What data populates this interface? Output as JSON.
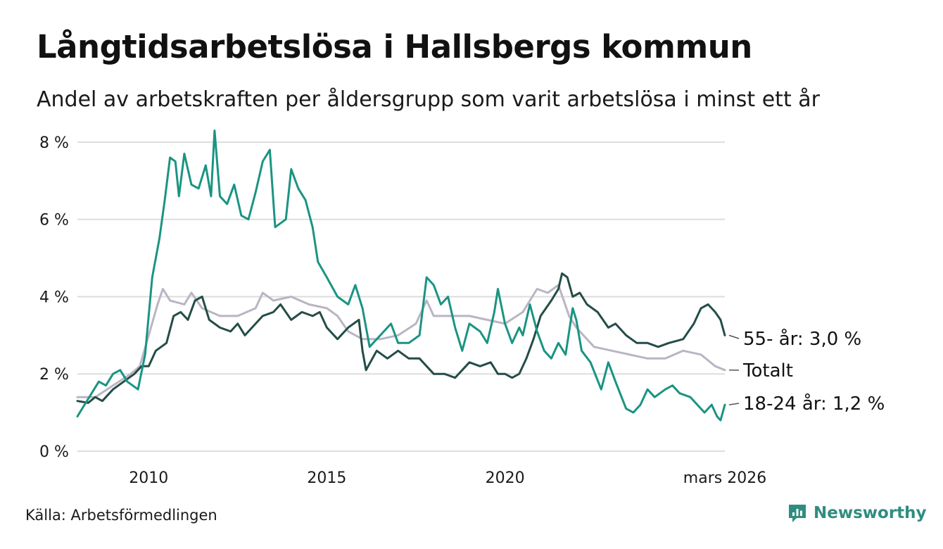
{
  "header": {
    "title": "Långtidsarbetslösa i Hallsbergs kommun",
    "subtitle": "Andel av arbetskraften per åldersgrupp som varit arbetslösa i minst ett år"
  },
  "footer": {
    "source": "Källa: Arbetsförmedlingen",
    "brand": "Newsworthy"
  },
  "colors": {
    "age_18_24": "#1a9482",
    "age_55": "#244d47",
    "total": "#b9b5c4",
    "grid": "#dddddd",
    "brand": "#2f8d80"
  },
  "chart_data": {
    "type": "line",
    "title": "Långtidsarbetslösa i Hallsbergs kommun",
    "xlabel": "",
    "ylabel": "",
    "x_ticks": [
      {
        "x": 2010,
        "label": "2010"
      },
      {
        "x": 2015,
        "label": "2015"
      },
      {
        "x": 2020,
        "label": "2020"
      },
      {
        "x": 2026.17,
        "label": "mars 2026"
      }
    ],
    "y_ticks": [
      {
        "y": 0,
        "label": "0 %"
      },
      {
        "y": 2,
        "label": "2 %"
      },
      {
        "y": 4,
        "label": "4 %"
      },
      {
        "y": 6,
        "label": "6 %"
      },
      {
        "y": 8,
        "label": "8 %"
      }
    ],
    "xlim": [
      2008.0,
      2026.17
    ],
    "ylim": [
      0,
      8.4
    ],
    "series": [
      {
        "name": "Totalt",
        "end_label": "Totalt",
        "color_key": "total",
        "points": [
          [
            2008.0,
            1.4
          ],
          [
            2008.5,
            1.4
          ],
          [
            2009.0,
            1.7
          ],
          [
            2009.5,
            2.0
          ],
          [
            2009.75,
            2.2
          ],
          [
            2010.0,
            3.0
          ],
          [
            2010.25,
            3.8
          ],
          [
            2010.4,
            4.2
          ],
          [
            2010.6,
            3.9
          ],
          [
            2011.0,
            3.8
          ],
          [
            2011.2,
            4.1
          ],
          [
            2011.5,
            3.7
          ],
          [
            2012.0,
            3.5
          ],
          [
            2012.5,
            3.5
          ],
          [
            2013.0,
            3.7
          ],
          [
            2013.2,
            4.1
          ],
          [
            2013.5,
            3.9
          ],
          [
            2014.0,
            4.0
          ],
          [
            2014.5,
            3.8
          ],
          [
            2015.0,
            3.7
          ],
          [
            2015.3,
            3.5
          ],
          [
            2015.6,
            3.1
          ],
          [
            2016.0,
            2.9
          ],
          [
            2016.5,
            2.9
          ],
          [
            2017.0,
            3.0
          ],
          [
            2017.5,
            3.3
          ],
          [
            2017.8,
            3.9
          ],
          [
            2018.0,
            3.5
          ],
          [
            2018.5,
            3.5
          ],
          [
            2019.0,
            3.5
          ],
          [
            2019.5,
            3.4
          ],
          [
            2020.0,
            3.3
          ],
          [
            2020.5,
            3.6
          ],
          [
            2020.9,
            4.2
          ],
          [
            2021.2,
            4.1
          ],
          [
            2021.5,
            4.3
          ],
          [
            2021.8,
            3.5
          ],
          [
            2022.0,
            3.2
          ],
          [
            2022.5,
            2.7
          ],
          [
            2023.0,
            2.6
          ],
          [
            2023.5,
            2.5
          ],
          [
            2024.0,
            2.4
          ],
          [
            2024.5,
            2.4
          ],
          [
            2025.0,
            2.6
          ],
          [
            2025.5,
            2.5
          ],
          [
            2025.9,
            2.2
          ],
          [
            2026.17,
            2.1
          ]
        ]
      },
      {
        "name": "55- år",
        "end_label": "55- år: 3,0 %",
        "color_key": "age_55",
        "points": [
          [
            2008.0,
            1.3
          ],
          [
            2008.3,
            1.25
          ],
          [
            2008.5,
            1.4
          ],
          [
            2008.7,
            1.3
          ],
          [
            2009.0,
            1.6
          ],
          [
            2009.3,
            1.8
          ],
          [
            2009.6,
            2.0
          ],
          [
            2009.8,
            2.2
          ],
          [
            2010.0,
            2.2
          ],
          [
            2010.2,
            2.6
          ],
          [
            2010.5,
            2.8
          ],
          [
            2010.7,
            3.5
          ],
          [
            2010.9,
            3.6
          ],
          [
            2011.1,
            3.4
          ],
          [
            2011.3,
            3.9
          ],
          [
            2011.5,
            4.0
          ],
          [
            2011.7,
            3.4
          ],
          [
            2012.0,
            3.2
          ],
          [
            2012.3,
            3.1
          ],
          [
            2012.5,
            3.3
          ],
          [
            2012.7,
            3.0
          ],
          [
            2013.0,
            3.3
          ],
          [
            2013.2,
            3.5
          ],
          [
            2013.5,
            3.6
          ],
          [
            2013.7,
            3.8
          ],
          [
            2014.0,
            3.4
          ],
          [
            2014.3,
            3.6
          ],
          [
            2014.6,
            3.5
          ],
          [
            2014.8,
            3.6
          ],
          [
            2015.0,
            3.2
          ],
          [
            2015.3,
            2.9
          ],
          [
            2015.6,
            3.2
          ],
          [
            2015.9,
            3.4
          ],
          [
            2016.0,
            2.6
          ],
          [
            2016.1,
            2.1
          ],
          [
            2016.4,
            2.6
          ],
          [
            2016.7,
            2.4
          ],
          [
            2017.0,
            2.6
          ],
          [
            2017.3,
            2.4
          ],
          [
            2017.6,
            2.4
          ],
          [
            2018.0,
            2.0
          ],
          [
            2018.3,
            2.0
          ],
          [
            2018.6,
            1.9
          ],
          [
            2018.8,
            2.1
          ],
          [
            2019.0,
            2.3
          ],
          [
            2019.3,
            2.2
          ],
          [
            2019.6,
            2.3
          ],
          [
            2019.8,
            2.0
          ],
          [
            2020.0,
            2.0
          ],
          [
            2020.2,
            1.9
          ],
          [
            2020.4,
            2.0
          ],
          [
            2020.6,
            2.4
          ],
          [
            2020.8,
            2.9
          ],
          [
            2021.0,
            3.5
          ],
          [
            2021.3,
            3.9
          ],
          [
            2021.5,
            4.2
          ],
          [
            2021.6,
            4.6
          ],
          [
            2021.75,
            4.5
          ],
          [
            2021.9,
            4.0
          ],
          [
            2022.1,
            4.1
          ],
          [
            2022.3,
            3.8
          ],
          [
            2022.6,
            3.6
          ],
          [
            2022.9,
            3.2
          ],
          [
            2023.1,
            3.3
          ],
          [
            2023.4,
            3.0
          ],
          [
            2023.7,
            2.8
          ],
          [
            2024.0,
            2.8
          ],
          [
            2024.3,
            2.7
          ],
          [
            2024.6,
            2.8
          ],
          [
            2025.0,
            2.9
          ],
          [
            2025.3,
            3.3
          ],
          [
            2025.5,
            3.7
          ],
          [
            2025.7,
            3.8
          ],
          [
            2025.9,
            3.6
          ],
          [
            2026.05,
            3.4
          ],
          [
            2026.17,
            3.0
          ]
        ]
      },
      {
        "name": "18-24 år",
        "end_label": "18-24 år: 1,2 %",
        "color_key": "age_18_24",
        "points": [
          [
            2008.0,
            0.9
          ],
          [
            2008.2,
            1.2
          ],
          [
            2008.4,
            1.5
          ],
          [
            2008.6,
            1.8
          ],
          [
            2008.8,
            1.7
          ],
          [
            2009.0,
            2.0
          ],
          [
            2009.2,
            2.1
          ],
          [
            2009.4,
            1.8
          ],
          [
            2009.7,
            1.6
          ],
          [
            2009.9,
            2.5
          ],
          [
            2010.1,
            4.5
          ],
          [
            2010.3,
            5.5
          ],
          [
            2010.45,
            6.5
          ],
          [
            2010.6,
            7.6
          ],
          [
            2010.75,
            7.5
          ],
          [
            2010.85,
            6.6
          ],
          [
            2011.0,
            7.7
          ],
          [
            2011.2,
            6.9
          ],
          [
            2011.4,
            6.8
          ],
          [
            2011.6,
            7.4
          ],
          [
            2011.75,
            6.6
          ],
          [
            2011.85,
            8.3
          ],
          [
            2012.0,
            6.6
          ],
          [
            2012.2,
            6.4
          ],
          [
            2012.4,
            6.9
          ],
          [
            2012.6,
            6.1
          ],
          [
            2012.8,
            6.0
          ],
          [
            2013.0,
            6.7
          ],
          [
            2013.2,
            7.5
          ],
          [
            2013.4,
            7.8
          ],
          [
            2013.55,
            5.8
          ],
          [
            2013.7,
            5.9
          ],
          [
            2013.85,
            6.0
          ],
          [
            2014.0,
            7.3
          ],
          [
            2014.2,
            6.8
          ],
          [
            2014.4,
            6.5
          ],
          [
            2014.6,
            5.8
          ],
          [
            2014.75,
            4.9
          ],
          [
            2015.0,
            4.5
          ],
          [
            2015.3,
            4.0
          ],
          [
            2015.6,
            3.8
          ],
          [
            2015.8,
            4.3
          ],
          [
            2016.0,
            3.7
          ],
          [
            2016.2,
            2.7
          ],
          [
            2016.5,
            3.0
          ],
          [
            2016.8,
            3.3
          ],
          [
            2017.0,
            2.8
          ],
          [
            2017.3,
            2.8
          ],
          [
            2017.6,
            3.0
          ],
          [
            2017.8,
            4.5
          ],
          [
            2018.0,
            4.3
          ],
          [
            2018.2,
            3.8
          ],
          [
            2018.4,
            4.0
          ],
          [
            2018.6,
            3.2
          ],
          [
            2018.8,
            2.6
          ],
          [
            2019.0,
            3.3
          ],
          [
            2019.3,
            3.1
          ],
          [
            2019.5,
            2.8
          ],
          [
            2019.7,
            3.6
          ],
          [
            2019.8,
            4.2
          ],
          [
            2020.0,
            3.3
          ],
          [
            2020.2,
            2.8
          ],
          [
            2020.4,
            3.2
          ],
          [
            2020.5,
            3.0
          ],
          [
            2020.7,
            3.8
          ],
          [
            2020.9,
            3.1
          ],
          [
            2021.1,
            2.6
          ],
          [
            2021.3,
            2.4
          ],
          [
            2021.5,
            2.8
          ],
          [
            2021.7,
            2.5
          ],
          [
            2021.9,
            3.7
          ],
          [
            2022.0,
            3.4
          ],
          [
            2022.15,
            2.6
          ],
          [
            2022.4,
            2.3
          ],
          [
            2022.7,
            1.6
          ],
          [
            2022.9,
            2.3
          ],
          [
            2023.1,
            1.8
          ],
          [
            2023.4,
            1.1
          ],
          [
            2023.6,
            1.0
          ],
          [
            2023.8,
            1.2
          ],
          [
            2024.0,
            1.6
          ],
          [
            2024.2,
            1.4
          ],
          [
            2024.5,
            1.6
          ],
          [
            2024.7,
            1.7
          ],
          [
            2024.9,
            1.5
          ],
          [
            2025.2,
            1.4
          ],
          [
            2025.4,
            1.2
          ],
          [
            2025.6,
            1.0
          ],
          [
            2025.8,
            1.2
          ],
          [
            2025.95,
            0.9
          ],
          [
            2026.05,
            0.8
          ],
          [
            2026.17,
            1.2
          ]
        ]
      }
    ]
  }
}
